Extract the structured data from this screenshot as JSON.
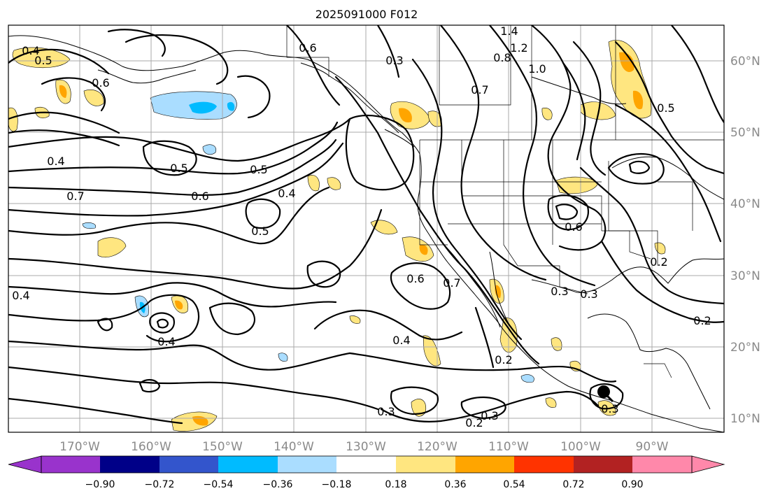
{
  "title": "2025091000 F012",
  "map": {
    "lon_labels": [
      "170°W",
      "160°W",
      "150°W",
      "140°W",
      "130°W",
      "120°W",
      "110°W",
      "100°W",
      "90°W"
    ],
    "lat_labels": [
      "60°N",
      "50°N",
      "40°N",
      "30°N",
      "20°N",
      "10°N"
    ],
    "grid": true,
    "shading_scale": {
      "ticks": [
        "−0.90",
        "−0.72",
        "−0.54",
        "−0.36",
        "−0.18",
        "0.18",
        "0.36",
        "0.54",
        "0.72",
        "0.90"
      ],
      "colors": [
        "#9933cc",
        "#000088",
        "#3355cc",
        "#00bbff",
        "#aaddff",
        "#ffffff",
        "#ffe680",
        "#ffa500",
        "#ff3300",
        "#b22222",
        "#ff88aa"
      ],
      "extend": "both"
    },
    "contour_labels": [
      "1.4",
      "1.2",
      "1.0",
      "0.8",
      "0.7",
      "0.6",
      "0.5",
      "0.4",
      "0.3",
      "0.2"
    ],
    "cyclone_marker": "black-filled-dot"
  }
}
